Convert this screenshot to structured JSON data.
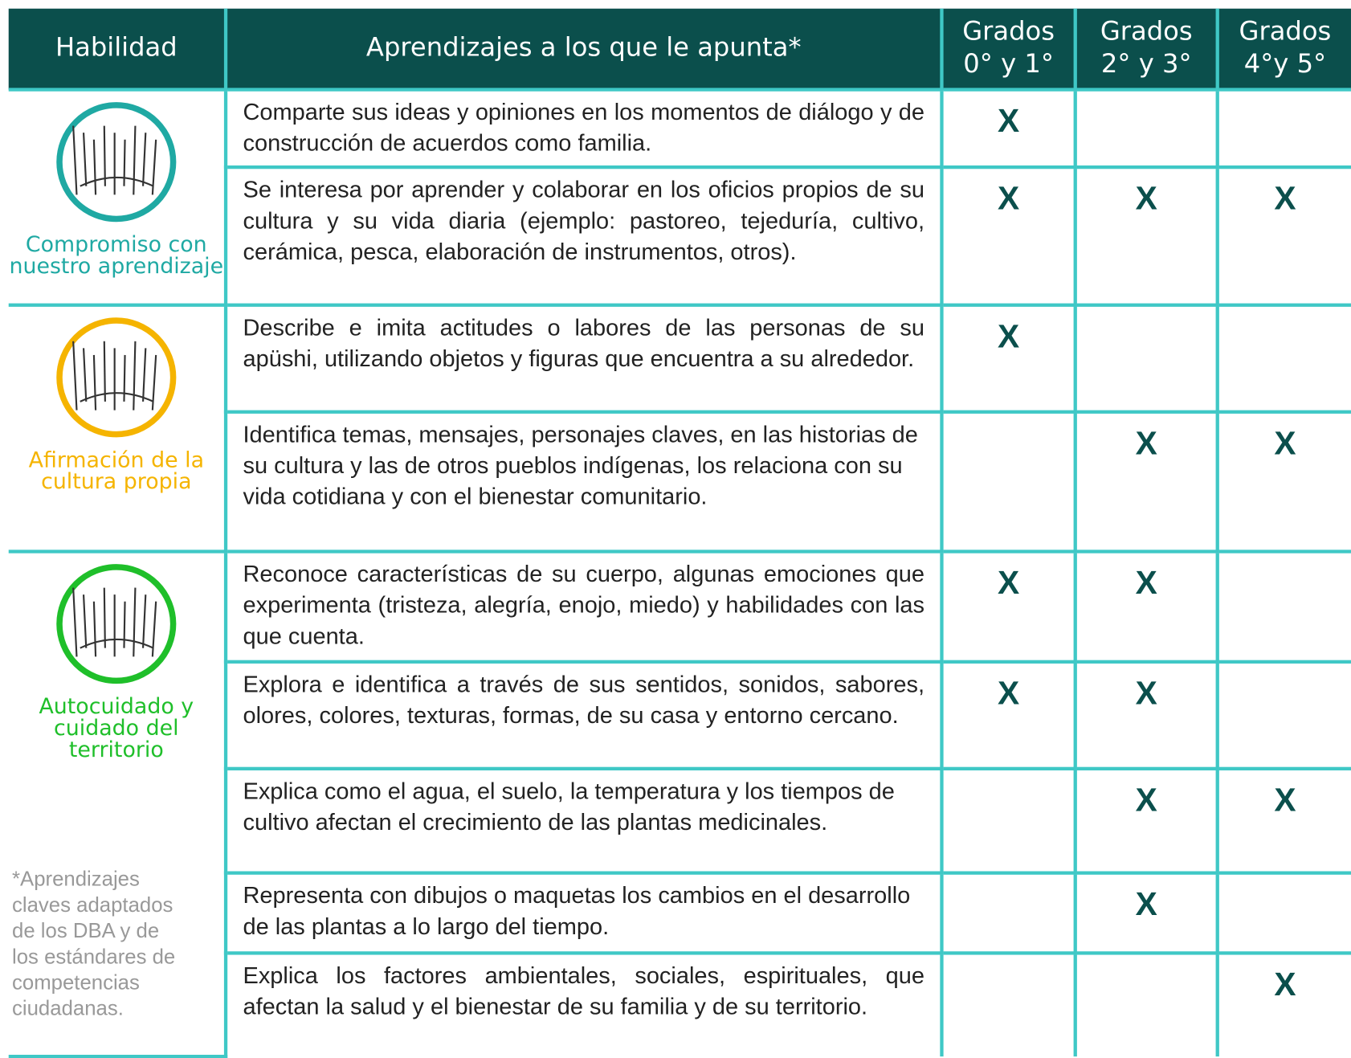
{
  "header": {
    "skill": "Habilidad",
    "learning": "Aprendizajes a los que le apunta*",
    "grades": [
      {
        "title": "Grados",
        "range": "0° y 1°"
      },
      {
        "title": "Grados",
        "range": "2° y 3°"
      },
      {
        "title": "Grados",
        "range": "4°y 5°"
      }
    ]
  },
  "groups": [
    {
      "skill": "Compromiso con nuestro aprendizaje",
      "color": "#1fa9a3",
      "rows": [
        {
          "text": "Comparte sus ideas y opiniones en los momentos de diálogo y de construcción de acuerdos como familia.",
          "marks": [
            "X",
            null,
            null
          ]
        },
        {
          "text": "Se interesa por aprender y colaborar en los oficios propios de su cultura y su vida diaria (ejemplo: pastoreo, tejeduría, cultivo, cerámica, pesca, elaboración de instrumentos, otros).",
          "marks": [
            "X",
            "X",
            "X"
          ]
        }
      ]
    },
    {
      "skill": "Afirmación de la cultura propia",
      "color": "#f5b400",
      "rows": [
        {
          "text": "Describe e imita actitudes o labores de las personas de su apüshi, utilizando objetos y figuras que encuentra a su alrededor.",
          "marks": [
            "X",
            null,
            null
          ]
        },
        {
          "text": "Identifica temas, mensajes, personajes claves, en las historias de su cultura y las de otros pueblos indígenas, los relaciona con su vida cotidiana y con el bienestar comunitario.",
          "marks": [
            null,
            "X",
            "X"
          ]
        }
      ]
    },
    {
      "skill": "Autocuidado y cuidado del territorio",
      "color": "#1fbf2a",
      "rows": [
        {
          "text": "Reconoce características de su cuerpo, algunas emociones que experimenta (tristeza, alegría, enojo, miedo) y habilidades con las que cuenta.",
          "marks": [
            "X",
            "X",
            null
          ]
        },
        {
          "text": "Explora e identifica a través de sus sentidos, sonidos, sabores, olores, colores, texturas, formas, de su casa y entorno cercano.",
          "marks": [
            "X",
            "X",
            null
          ]
        },
        {
          "text": "Explica como el agua, el suelo, la temperatura y los tiempos de cultivo afectan el crecimiento de las plantas medicinales.",
          "marks": [
            null,
            "X",
            "X"
          ]
        },
        {
          "text": "Representa con dibujos o maquetas los cambios en el desarrollo de las plantas a lo largo del tiempo.",
          "marks": [
            null,
            "X",
            null
          ]
        },
        {
          "text": "Explica los factores ambientales, sociales, espirituales, que afectan la salud y el bienestar de su familia y de su territorio.",
          "marks": [
            null,
            null,
            "X"
          ]
        }
      ]
    }
  ],
  "footnote": "*Aprendizajes claves adaptados de los DBA y de los estándares de competencias ciudadanas."
}
